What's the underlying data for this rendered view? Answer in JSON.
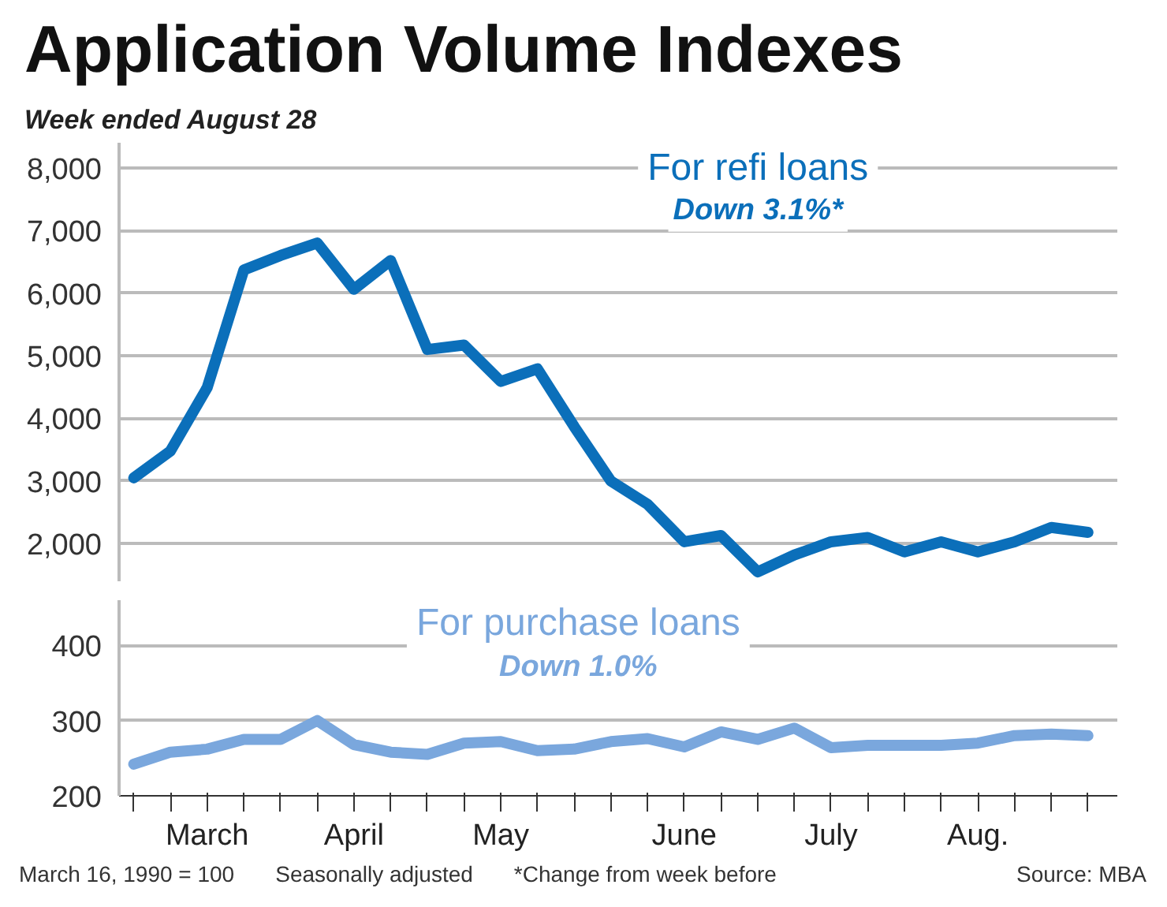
{
  "chart_data": [
    {
      "type": "line",
      "title": "Application Volume Indexes",
      "subtitle": "Week ended August 28",
      "categories": [
        null,
        null,
        null,
        null,
        null,
        null,
        null,
        null,
        null,
        null,
        null,
        null,
        null,
        null,
        null,
        null,
        null,
        null,
        null,
        null,
        null,
        null,
        null,
        null,
        null,
        null,
        null
      ],
      "ylim": [
        1400,
        8400
      ],
      "yticks": [
        {
          "value": 2000,
          "label": "2,000"
        },
        {
          "value": 3000,
          "label": "3,000"
        },
        {
          "value": 4000,
          "label": "4,000"
        },
        {
          "value": 5000,
          "label": "5,000"
        },
        {
          "value": 6000,
          "label": "6,000"
        },
        {
          "value": 7000,
          "label": "7,000"
        },
        {
          "value": 8000,
          "label": "8,000"
        }
      ],
      "grid": "y",
      "tick_labels": "y",
      "line_style": "solid",
      "series": [
        {
          "name": "For refi loans",
          "color": "#0b6fba",
          "values": [
            3050,
            3480,
            4490,
            6370,
            6600,
            6800,
            6060,
            6520,
            5100,
            5170,
            4590,
            4790,
            3870,
            3000,
            2630,
            2030,
            2130,
            1550,
            1820,
            2030,
            2100,
            1870,
            2030,
            1870,
            2030,
            2260,
            2180
          ]
        }
      ],
      "annotations": [
        "Down 3.1%*"
      ]
    },
    {
      "type": "line",
      "categories": [
        null,
        null,
        "March",
        null,
        null,
        null,
        "April",
        null,
        null,
        null,
        "May",
        null,
        null,
        null,
        null,
        "June",
        null,
        null,
        null,
        "July",
        null,
        null,
        null,
        "Aug.",
        null,
        null,
        null
      ],
      "ylim": [
        200,
        460
      ],
      "yticks": [
        200,
        300,
        400
      ],
      "grid": "y",
      "line_style": "solid",
      "series": [
        {
          "name": "For purchase loans",
          "color": "#7aa7dd",
          "values": [
            242,
            258,
            262,
            275,
            275,
            300,
            268,
            258,
            255,
            270,
            272,
            260,
            262,
            272,
            276,
            265,
            285,
            275,
            290,
            264,
            267,
            267,
            267,
            270,
            280,
            282,
            280
          ]
        }
      ],
      "annotations": [
        "Down 1.0%",
        "March 16, 1990 = 100",
        "Seasonally adjusted",
        "*Change from week before",
        "Source: MBA"
      ]
    }
  ]
}
